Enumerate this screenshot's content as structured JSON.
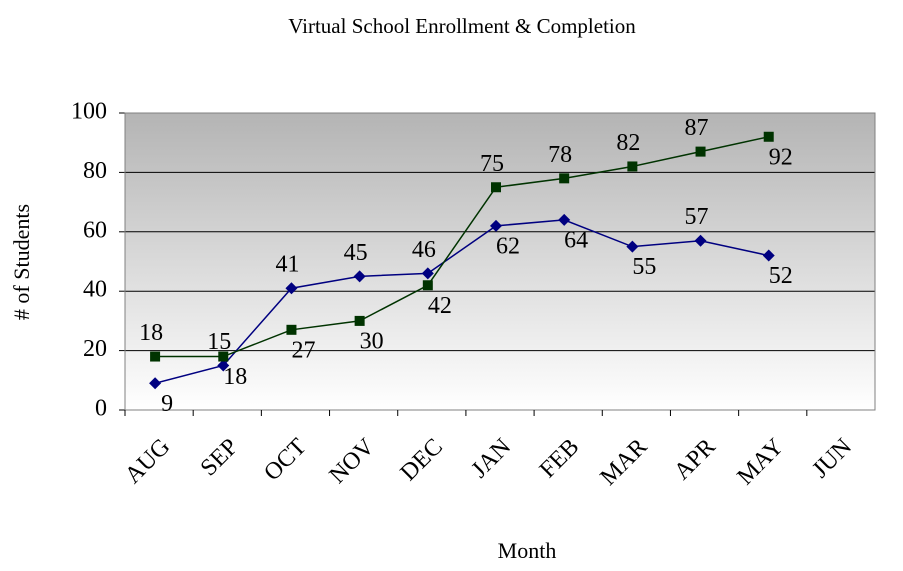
{
  "chart_data": {
    "type": "line",
    "title": "Virtual School Enrollment & Completion",
    "x_label": "Month",
    "y_label": "# of Students",
    "categories": [
      "AUG",
      "SEP",
      "OCT",
      "NOV",
      "DEC",
      "JAN",
      "FEB",
      "MAR",
      "APR",
      "MAY",
      "JUN"
    ],
    "series": [
      {
        "color": "#000080",
        "marker": "diamond",
        "values": [
          9,
          15,
          41,
          45,
          46,
          62,
          64,
          55,
          57,
          52,
          null
        ]
      },
      {
        "color": "#003300",
        "marker": "square",
        "values": [
          18,
          18,
          27,
          30,
          42,
          75,
          78,
          82,
          87,
          92,
          null
        ]
      }
    ],
    "ylim": [
      0,
      100
    ],
    "yticks": [
      0,
      20,
      40,
      60,
      80,
      100
    ],
    "grid": true
  }
}
